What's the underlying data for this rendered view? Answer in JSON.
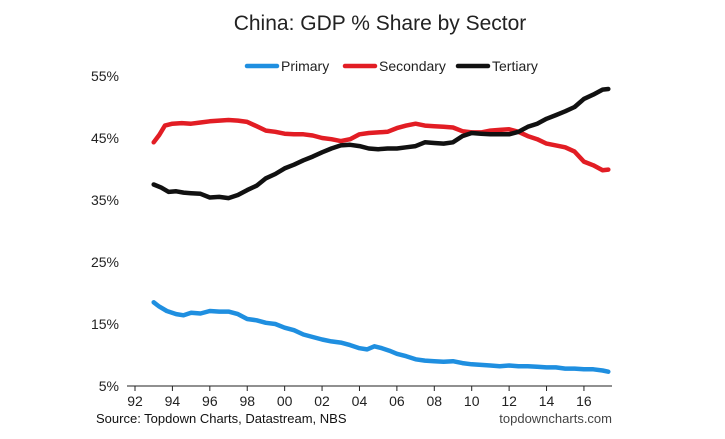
{
  "chart_data": {
    "type": "line",
    "title": "China: GDP % Share by Sector",
    "xlabel": "",
    "ylabel": "",
    "xlim": [
      1992,
      2017.5
    ],
    "ylim": [
      5,
      55
    ],
    "x_ticks": [
      1992,
      1994,
      1996,
      1998,
      2000,
      2002,
      2004,
      2006,
      2008,
      2010,
      2012,
      2014,
      2016
    ],
    "x_tick_labels": [
      "92",
      "94",
      "96",
      "98",
      "00",
      "02",
      "04",
      "06",
      "08",
      "10",
      "12",
      "14",
      "16"
    ],
    "y_ticks": [
      5,
      15,
      25,
      35,
      45,
      55
    ],
    "y_tick_labels": [
      "5%",
      "15%",
      "25%",
      "35%",
      "45%",
      "55%"
    ],
    "grid": false,
    "legend_position": "top-center",
    "series": [
      {
        "name": "Primary",
        "color": "#1f8fe0",
        "points": [
          [
            1993.0,
            18.5
          ],
          [
            1993.3,
            17.8
          ],
          [
            1993.7,
            17.1
          ],
          [
            1994.2,
            16.6
          ],
          [
            1994.6,
            16.4
          ],
          [
            1995.0,
            16.8
          ],
          [
            1995.5,
            16.7
          ],
          [
            1996.0,
            17.1
          ],
          [
            1996.5,
            17.0
          ],
          [
            1997.0,
            17.0
          ],
          [
            1997.5,
            16.6
          ],
          [
            1998.0,
            15.8
          ],
          [
            1998.5,
            15.6
          ],
          [
            1999.0,
            15.2
          ],
          [
            1999.5,
            15.0
          ],
          [
            2000.0,
            14.4
          ],
          [
            2000.5,
            14.0
          ],
          [
            2001.0,
            13.3
          ],
          [
            2001.5,
            12.9
          ],
          [
            2002.0,
            12.5
          ],
          [
            2002.5,
            12.2
          ],
          [
            2003.0,
            12.0
          ],
          [
            2003.5,
            11.6
          ],
          [
            2004.0,
            11.1
          ],
          [
            2004.4,
            10.9
          ],
          [
            2004.8,
            11.4
          ],
          [
            2005.2,
            11.1
          ],
          [
            2005.6,
            10.7
          ],
          [
            2006.0,
            10.2
          ],
          [
            2006.5,
            9.8
          ],
          [
            2007.0,
            9.3
          ],
          [
            2007.5,
            9.1
          ],
          [
            2008.0,
            9.0
          ],
          [
            2008.5,
            8.9
          ],
          [
            2009.0,
            9.0
          ],
          [
            2009.5,
            8.7
          ],
          [
            2010.0,
            8.5
          ],
          [
            2010.5,
            8.4
          ],
          [
            2011.0,
            8.3
          ],
          [
            2011.5,
            8.2
          ],
          [
            2012.0,
            8.3
          ],
          [
            2012.5,
            8.2
          ],
          [
            2013.0,
            8.2
          ],
          [
            2013.5,
            8.1
          ],
          [
            2014.0,
            8.0
          ],
          [
            2014.5,
            8.0
          ],
          [
            2015.0,
            7.8
          ],
          [
            2015.5,
            7.8
          ],
          [
            2016.0,
            7.7
          ],
          [
            2016.5,
            7.7
          ],
          [
            2017.0,
            7.5
          ],
          [
            2017.3,
            7.3
          ]
        ]
      },
      {
        "name": "Secondary",
        "color": "#e21d24",
        "points": [
          [
            1993.0,
            44.3
          ],
          [
            1993.3,
            45.5
          ],
          [
            1993.6,
            47.0
          ],
          [
            1994.0,
            47.3
          ],
          [
            1994.5,
            47.4
          ],
          [
            1995.0,
            47.3
          ],
          [
            1995.5,
            47.5
          ],
          [
            1996.0,
            47.7
          ],
          [
            1996.5,
            47.8
          ],
          [
            1997.0,
            47.9
          ],
          [
            1997.5,
            47.8
          ],
          [
            1998.0,
            47.6
          ],
          [
            1998.5,
            46.9
          ],
          [
            1999.0,
            46.2
          ],
          [
            1999.5,
            46.0
          ],
          [
            2000.0,
            45.7
          ],
          [
            2000.5,
            45.6
          ],
          [
            2001.0,
            45.6
          ],
          [
            2001.5,
            45.4
          ],
          [
            2002.0,
            45.0
          ],
          [
            2002.5,
            44.8
          ],
          [
            2003.0,
            44.5
          ],
          [
            2003.5,
            44.8
          ],
          [
            2004.0,
            45.6
          ],
          [
            2004.5,
            45.8
          ],
          [
            2005.0,
            45.9
          ],
          [
            2005.5,
            46.0
          ],
          [
            2006.0,
            46.6
          ],
          [
            2006.5,
            47.0
          ],
          [
            2007.0,
            47.3
          ],
          [
            2007.5,
            47.0
          ],
          [
            2008.0,
            46.9
          ],
          [
            2008.5,
            46.8
          ],
          [
            2009.0,
            46.7
          ],
          [
            2009.5,
            46.1
          ],
          [
            2010.0,
            45.9
          ],
          [
            2010.5,
            45.9
          ],
          [
            2011.0,
            46.2
          ],
          [
            2011.5,
            46.3
          ],
          [
            2012.0,
            46.4
          ],
          [
            2012.5,
            46.0
          ],
          [
            2013.0,
            45.3
          ],
          [
            2013.5,
            44.8
          ],
          [
            2014.0,
            44.1
          ],
          [
            2014.5,
            43.8
          ],
          [
            2015.0,
            43.5
          ],
          [
            2015.5,
            42.8
          ],
          [
            2016.0,
            41.2
          ],
          [
            2016.5,
            40.6
          ],
          [
            2017.0,
            39.8
          ],
          [
            2017.3,
            39.9
          ]
        ]
      },
      {
        "name": "Tertiary",
        "color": "#111111",
        "points": [
          [
            1993.0,
            37.5
          ],
          [
            1993.4,
            37.0
          ],
          [
            1993.8,
            36.3
          ],
          [
            1994.2,
            36.4
          ],
          [
            1994.6,
            36.2
          ],
          [
            1995.0,
            36.1
          ],
          [
            1995.5,
            36.0
          ],
          [
            1996.0,
            35.4
          ],
          [
            1996.5,
            35.5
          ],
          [
            1997.0,
            35.3
          ],
          [
            1997.5,
            35.8
          ],
          [
            1998.0,
            36.6
          ],
          [
            1998.5,
            37.3
          ],
          [
            1999.0,
            38.5
          ],
          [
            1999.5,
            39.2
          ],
          [
            2000.0,
            40.1
          ],
          [
            2000.5,
            40.7
          ],
          [
            2001.0,
            41.4
          ],
          [
            2001.5,
            42.0
          ],
          [
            2002.0,
            42.7
          ],
          [
            2002.5,
            43.3
          ],
          [
            2003.0,
            43.8
          ],
          [
            2003.5,
            43.9
          ],
          [
            2004.0,
            43.7
          ],
          [
            2004.5,
            43.3
          ],
          [
            2005.0,
            43.2
          ],
          [
            2005.5,
            43.3
          ],
          [
            2006.0,
            43.3
          ],
          [
            2006.5,
            43.5
          ],
          [
            2007.0,
            43.7
          ],
          [
            2007.5,
            44.3
          ],
          [
            2008.0,
            44.2
          ],
          [
            2008.5,
            44.1
          ],
          [
            2009.0,
            44.3
          ],
          [
            2009.5,
            45.3
          ],
          [
            2010.0,
            45.8
          ],
          [
            2010.5,
            45.7
          ],
          [
            2011.0,
            45.6
          ],
          [
            2011.5,
            45.6
          ],
          [
            2012.0,
            45.6
          ],
          [
            2012.5,
            46.0
          ],
          [
            2013.0,
            46.8
          ],
          [
            2013.5,
            47.3
          ],
          [
            2014.0,
            48.1
          ],
          [
            2014.5,
            48.7
          ],
          [
            2015.0,
            49.3
          ],
          [
            2015.5,
            50.0
          ],
          [
            2016.0,
            51.3
          ],
          [
            2016.5,
            52.0
          ],
          [
            2017.0,
            52.8
          ],
          [
            2017.3,
            52.9
          ]
        ]
      }
    ]
  },
  "footer": {
    "source": "Source: Topdown Charts, Datastream, NBS",
    "watermark": "topdowncharts.com"
  }
}
